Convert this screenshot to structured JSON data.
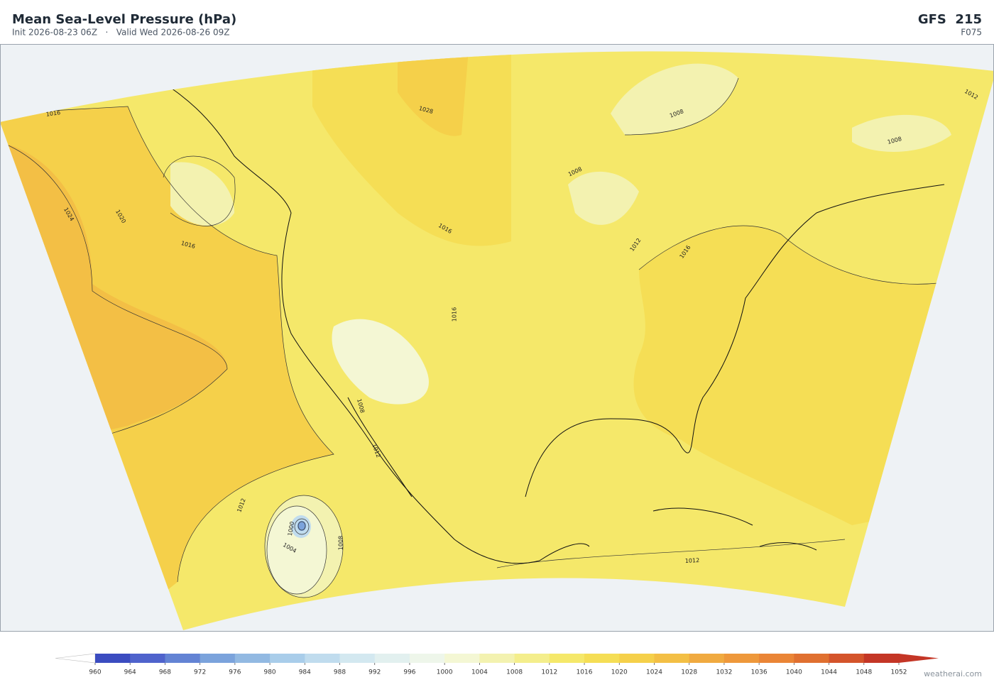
{
  "header": {
    "title": "Mean Sea-Level Pressure  (hPa)",
    "subtitle": "Init 2026-08-23 06Z   ·   Valid Wed 2026-08-26 09Z",
    "model": "GFS  215",
    "forecast_hour": "F075"
  },
  "map": {
    "contour_labels": [
      1016,
      1024,
      1020,
      1016,
      1028,
      1016,
      1008,
      1008,
      1012,
      1008,
      1012,
      1016,
      1016,
      1008,
      1012,
      1012,
      1000,
      1004,
      1008,
      1012
    ]
  },
  "colorbar": {
    "ticks": [
      960,
      964,
      968,
      972,
      976,
      980,
      984,
      988,
      992,
      996,
      1000,
      1004,
      1008,
      1012,
      1016,
      1020,
      1024,
      1028,
      1032,
      1036,
      1040,
      1044,
      1048,
      1052
    ],
    "colors": [
      "#3b4cc0",
      "#4f63cc",
      "#6383d4",
      "#7ba3dc",
      "#92b9e2",
      "#a9cdea",
      "#c0dcee",
      "#d3e8f0",
      "#e2f0ef",
      "#eef6ea",
      "#f4f7d4",
      "#f3f2b0",
      "#f4ee8c",
      "#f5e86a",
      "#f5de55",
      "#f5d04a",
      "#f3bf45",
      "#f0aa40",
      "#ee983b",
      "#ea8536",
      "#e07030",
      "#d4542b",
      "#c43626"
    ]
  },
  "footer": {
    "watermark": "weatherai.com"
  }
}
